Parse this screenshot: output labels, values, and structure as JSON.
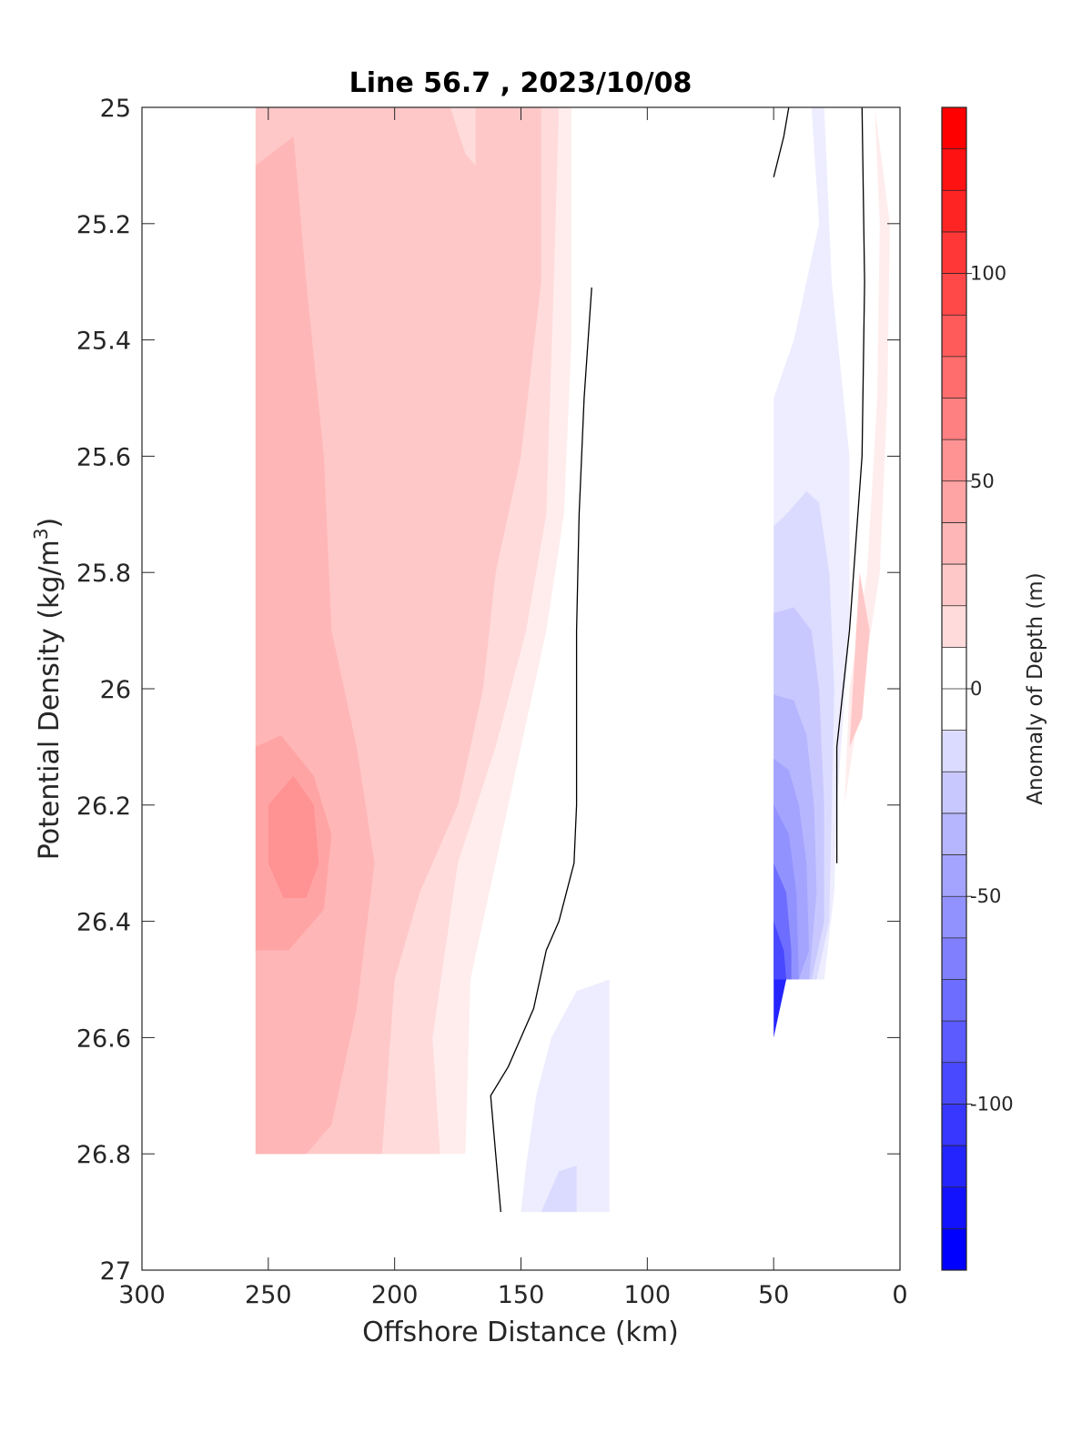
{
  "chart_data": {
    "type": "heatmap",
    "title": "Line 56.7 , 2023/10/08",
    "xlabel": "Offshore Distance (km)",
    "ylabel_main": "Potential Density (kg/m",
    "ylabel_sup": "3",
    "ylabel_close": ")",
    "xlim": [
      300,
      0
    ],
    "x_reversed": true,
    "ylim": [
      25,
      27
    ],
    "y_reversed": true,
    "xticks": [
      300,
      250,
      200,
      150,
      100,
      50,
      0
    ],
    "yticks": [
      25,
      25.2,
      25.4,
      25.6,
      25.8,
      26,
      26.2,
      26.4,
      26.6,
      26.8,
      27
    ],
    "xtick_labels": [
      "300",
      "250",
      "200",
      "150",
      "100",
      "50",
      "0"
    ],
    "ytick_labels": [
      "25",
      "25.2",
      "25.4",
      "25.6",
      "25.8",
      "26",
      "26.2",
      "26.4",
      "26.6",
      "26.8",
      "27"
    ],
    "colorbar": {
      "label": "Anomaly of Depth (m)",
      "range": [
        -140,
        140
      ],
      "level_step": 10,
      "ticks": [
        100,
        50,
        0,
        -50,
        -100
      ],
      "tick_labels": [
        "100",
        "50",
        "0",
        "-50",
        "-100"
      ],
      "neg_color": "#0000ff",
      "pos_color": "#ff0000"
    },
    "contour_zero_color": "#000000",
    "regions": [
      {
        "level": 10,
        "points": [
          [
            255,
            25
          ],
          [
            130,
            25
          ],
          [
            130,
            25.4
          ],
          [
            133,
            25.7
          ],
          [
            140,
            25.9
          ],
          [
            150,
            26.1
          ],
          [
            160,
            26.3
          ],
          [
            170,
            26.5
          ],
          [
            172,
            26.8
          ],
          [
            255,
            26.8
          ]
        ]
      },
      {
        "level": 20,
        "points": [
          [
            255,
            25
          ],
          [
            135,
            25
          ],
          [
            137,
            25.3
          ],
          [
            140,
            25.7
          ],
          [
            148,
            25.9
          ],
          [
            160,
            26.1
          ],
          [
            175,
            26.3
          ],
          [
            185,
            26.6
          ],
          [
            182,
            26.8
          ],
          [
            255,
            26.8
          ]
        ]
      },
      {
        "level": 30,
        "points": [
          [
            255,
            25
          ],
          [
            142,
            25
          ],
          [
            142,
            25.3
          ],
          [
            150,
            25.6
          ],
          [
            160,
            25.8
          ],
          [
            165,
            26.0
          ],
          [
            175,
            26.2
          ],
          [
            190,
            26.35
          ],
          [
            200,
            26.5
          ],
          [
            205,
            26.8
          ],
          [
            255,
            26.8
          ]
        ]
      },
      {
        "level": 40,
        "points": [
          [
            255,
            25.1
          ],
          [
            240,
            25.05
          ],
          [
            235,
            25.3
          ],
          [
            228,
            25.6
          ],
          [
            225,
            25.9
          ],
          [
            215,
            26.1
          ],
          [
            208,
            26.3
          ],
          [
            215,
            26.55
          ],
          [
            225,
            26.75
          ],
          [
            235,
            26.8
          ],
          [
            255,
            26.8
          ]
        ]
      },
      {
        "level": 50,
        "points": [
          [
            255,
            26.1
          ],
          [
            245,
            26.08
          ],
          [
            232,
            26.15
          ],
          [
            225,
            26.25
          ],
          [
            228,
            26.38
          ],
          [
            242,
            26.45
          ],
          [
            255,
            26.45
          ]
        ]
      },
      {
        "level": 60,
        "points": [
          [
            250,
            26.2
          ],
          [
            240,
            26.15
          ],
          [
            232,
            26.2
          ],
          [
            230,
            26.3
          ],
          [
            235,
            26.36
          ],
          [
            244,
            26.36
          ],
          [
            250,
            26.3
          ]
        ]
      },
      {
        "level": 20,
        "points": [
          [
            178,
            25
          ],
          [
            168,
            25
          ],
          [
            168,
            25.1
          ],
          [
            172,
            25.08
          ]
        ]
      },
      {
        "level": 10,
        "points": [
          [
            10,
            25
          ],
          [
            4,
            25.2
          ],
          [
            5,
            25.5
          ],
          [
            8,
            25.8
          ],
          [
            15,
            26.0
          ],
          [
            22,
            26.2
          ],
          [
            20,
            26.0
          ],
          [
            13,
            25.8
          ],
          [
            9,
            25.5
          ],
          [
            8,
            25.2
          ]
        ]
      },
      {
        "level": 30,
        "points": [
          [
            16,
            25.8
          ],
          [
            12,
            25.9
          ],
          [
            15,
            26.05
          ],
          [
            20,
            26.1
          ],
          [
            18,
            25.95
          ]
        ]
      },
      {
        "level": -10,
        "points": [
          [
            35,
            25
          ],
          [
            30,
            25
          ],
          [
            27,
            25.3
          ],
          [
            20,
            25.6
          ],
          [
            20,
            25.9
          ],
          [
            25,
            26.2
          ],
          [
            26,
            26.35
          ],
          [
            30,
            26.5
          ],
          [
            50,
            26.5
          ],
          [
            50,
            25.5
          ],
          [
            42,
            25.4
          ],
          [
            32,
            25.2
          ]
        ]
      },
      {
        "level": -20,
        "points": [
          [
            50,
            25.72
          ],
          [
            45,
            25.7
          ],
          [
            37,
            25.66
          ],
          [
            32,
            25.68
          ],
          [
            28,
            25.8
          ],
          [
            26,
            26.0
          ],
          [
            27,
            26.2
          ],
          [
            28,
            26.4
          ],
          [
            33,
            26.5
          ],
          [
            50,
            26.5
          ]
        ]
      },
      {
        "level": -30,
        "points": [
          [
            50,
            25.87
          ],
          [
            42,
            25.86
          ],
          [
            35,
            25.9
          ],
          [
            32,
            26.0
          ],
          [
            30,
            26.2
          ],
          [
            30,
            26.4
          ],
          [
            35,
            26.5
          ],
          [
            50,
            26.5
          ]
        ]
      },
      {
        "level": -40,
        "points": [
          [
            50,
            26.01
          ],
          [
            42,
            26.02
          ],
          [
            37,
            26.08
          ],
          [
            34,
            26.2
          ],
          [
            33,
            26.35
          ],
          [
            36,
            26.5
          ],
          [
            50,
            26.5
          ]
        ]
      },
      {
        "level": -50,
        "points": [
          [
            50,
            26.12
          ],
          [
            44,
            26.14
          ],
          [
            40,
            26.2
          ],
          [
            37,
            26.3
          ],
          [
            36,
            26.45
          ],
          [
            40,
            26.5
          ],
          [
            50,
            26.5
          ]
        ]
      },
      {
        "level": -60,
        "points": [
          [
            50,
            26.2
          ],
          [
            44,
            26.25
          ],
          [
            41,
            26.35
          ],
          [
            40,
            26.5
          ],
          [
            50,
            26.5
          ]
        ]
      },
      {
        "level": -80,
        "points": [
          [
            50,
            26.3
          ],
          [
            45,
            26.35
          ],
          [
            43,
            26.45
          ],
          [
            43,
            26.5
          ],
          [
            50,
            26.5
          ]
        ]
      },
      {
        "level": -100,
        "points": [
          [
            50,
            26.4
          ],
          [
            46,
            26.45
          ],
          [
            45,
            26.5
          ],
          [
            50,
            26.5
          ]
        ]
      },
      {
        "level": -120,
        "points": [
          [
            50,
            26.5
          ],
          [
            45,
            26.5
          ],
          [
            50,
            26.6
          ]
        ]
      },
      {
        "level": -10,
        "points": [
          [
            115,
            26.5
          ],
          [
            115,
            26.9
          ],
          [
            150,
            26.9
          ],
          [
            148,
            26.82
          ],
          [
            144,
            26.7
          ],
          [
            138,
            26.6
          ],
          [
            128,
            26.52
          ]
        ]
      },
      {
        "level": -20,
        "points": [
          [
            128,
            26.82
          ],
          [
            135,
            26.83
          ],
          [
            142,
            26.9
          ],
          [
            128,
            26.9
          ]
        ]
      }
    ],
    "zero_contours": [
      [
        [
          122,
          25.31
        ],
        [
          125,
          25.5
        ],
        [
          127,
          25.7
        ],
        [
          128,
          25.9
        ],
        [
          128,
          26.1
        ],
        [
          128,
          26.2
        ],
        [
          129,
          26.3
        ],
        [
          135,
          26.4
        ],
        [
          140,
          26.45
        ],
        [
          145,
          26.55
        ],
        [
          155,
          26.65
        ],
        [
          162,
          26.7
        ],
        [
          160,
          26.8
        ],
        [
          158,
          26.9
        ]
      ],
      [
        [
          50,
          25.12
        ],
        [
          46,
          25.05
        ],
        [
          44,
          25
        ]
      ],
      [
        [
          15,
          25
        ],
        [
          14,
          25.3
        ],
        [
          15,
          25.6
        ],
        [
          20,
          25.9
        ],
        [
          25,
          26.1
        ],
        [
          25,
          26.3
        ]
      ]
    ]
  }
}
